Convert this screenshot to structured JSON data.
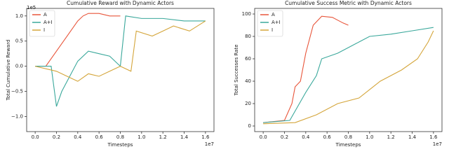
{
  "chart_data": [
    {
      "type": "line",
      "title": "Cumulative Reward with Dynamic Actors",
      "xlabel": "Timesteps",
      "ylabel": "Total Cumulative Reward",
      "x_offset_label": "1e7",
      "y_offset_label": "1e5",
      "xlim": [
        -0.08,
        1.68
      ],
      "ylim": [
        -1.3,
        1.15
      ],
      "xticks": [
        {
          "value": 0,
          "label": "0.0"
        },
        0.2,
        0.4,
        0.6,
        0.8,
        {
          "value": 1,
          "label": "1.0"
        },
        1.2,
        1.4,
        1.6
      ],
      "yticks": [
        {
          "value": -1,
          "label": "−1.0"
        },
        {
          "value": -0.5,
          "label": "−0.5"
        },
        {
          "value": 0,
          "label": "0.0"
        },
        0.5,
        {
          "value": 1,
          "label": "1.0"
        }
      ],
      "legend": "upper left",
      "series": [
        {
          "name": "A",
          "color": "#e8553a",
          "x": [
            0,
            0.1,
            0.2,
            0.3,
            0.4,
            0.45,
            0.5,
            0.6,
            0.7,
            0.8
          ],
          "values": [
            0,
            0,
            0.3,
            0.6,
            0.9,
            1,
            1.05,
            1.05,
            1,
            1
          ]
        },
        {
          "name": "A+I",
          "color": "#3aa89b",
          "x": [
            0,
            0.15,
            0.2,
            0.25,
            0.3,
            0.4,
            0.5,
            0.6,
            0.7,
            0.8,
            0.85,
            1,
            1.2,
            1.4,
            1.6
          ],
          "values": [
            0,
            0,
            -0.8,
            -0.5,
            -0.3,
            0.1,
            0.3,
            0.25,
            0.2,
            0,
            1,
            0.95,
            0.95,
            0.9,
            0.9
          ]
        },
        {
          "name": "I",
          "color": "#d4a53a",
          "x": [
            0,
            0.2,
            0.3,
            0.4,
            0.5,
            0.6,
            0.7,
            0.8,
            0.9,
            0.95,
            1.1,
            1.2,
            1.3,
            1.45,
            1.6
          ],
          "values": [
            0,
            -0.1,
            -0.2,
            -0.3,
            -0.15,
            -0.2,
            -0.1,
            0,
            -0.1,
            0.7,
            0.6,
            0.7,
            0.8,
            0.7,
            0.9
          ]
        }
      ]
    },
    {
      "type": "line",
      "title": "Cumulative Success Metric with Dynamic Actors",
      "xlabel": "Timesteps",
      "ylabel": "Total Successes Rate",
      "x_offset_label": "1e7",
      "xlim": [
        -0.08,
        1.68
      ],
      "ylim": [
        -5,
        105
      ],
      "xticks": [
        {
          "value": 0,
          "label": "0.0"
        },
        0.2,
        0.4,
        0.6,
        0.8,
        {
          "value": 1,
          "label": "1.0"
        },
        1.2,
        1.4,
        1.6
      ],
      "yticks": [
        0,
        20,
        40,
        60,
        80,
        100
      ],
      "legend": "upper left",
      "series": [
        {
          "name": "A",
          "color": "#e8553a",
          "x": [
            0,
            0.2,
            0.27,
            0.3,
            0.35,
            0.4,
            0.47,
            0.55,
            0.65,
            0.75,
            0.8
          ],
          "values": [
            3,
            5,
            20,
            35,
            40,
            65,
            90,
            98,
            97,
            92,
            90
          ]
        },
        {
          "name": "A+I",
          "color": "#3aa89b",
          "x": [
            0,
            0.25,
            0.4,
            0.5,
            0.55,
            0.7,
            0.8,
            0.9,
            1,
            1.2,
            1.4,
            1.6
          ],
          "values": [
            3,
            5,
            30,
            45,
            60,
            65,
            70,
            75,
            80,
            82,
            85,
            88
          ]
        },
        {
          "name": "I",
          "color": "#d4a53a",
          "x": [
            0,
            0.3,
            0.5,
            0.7,
            0.9,
            1.1,
            1.3,
            1.45,
            1.55,
            1.6
          ],
          "values": [
            2,
            3,
            10,
            20,
            25,
            40,
            50,
            60,
            75,
            85
          ]
        }
      ]
    }
  ]
}
